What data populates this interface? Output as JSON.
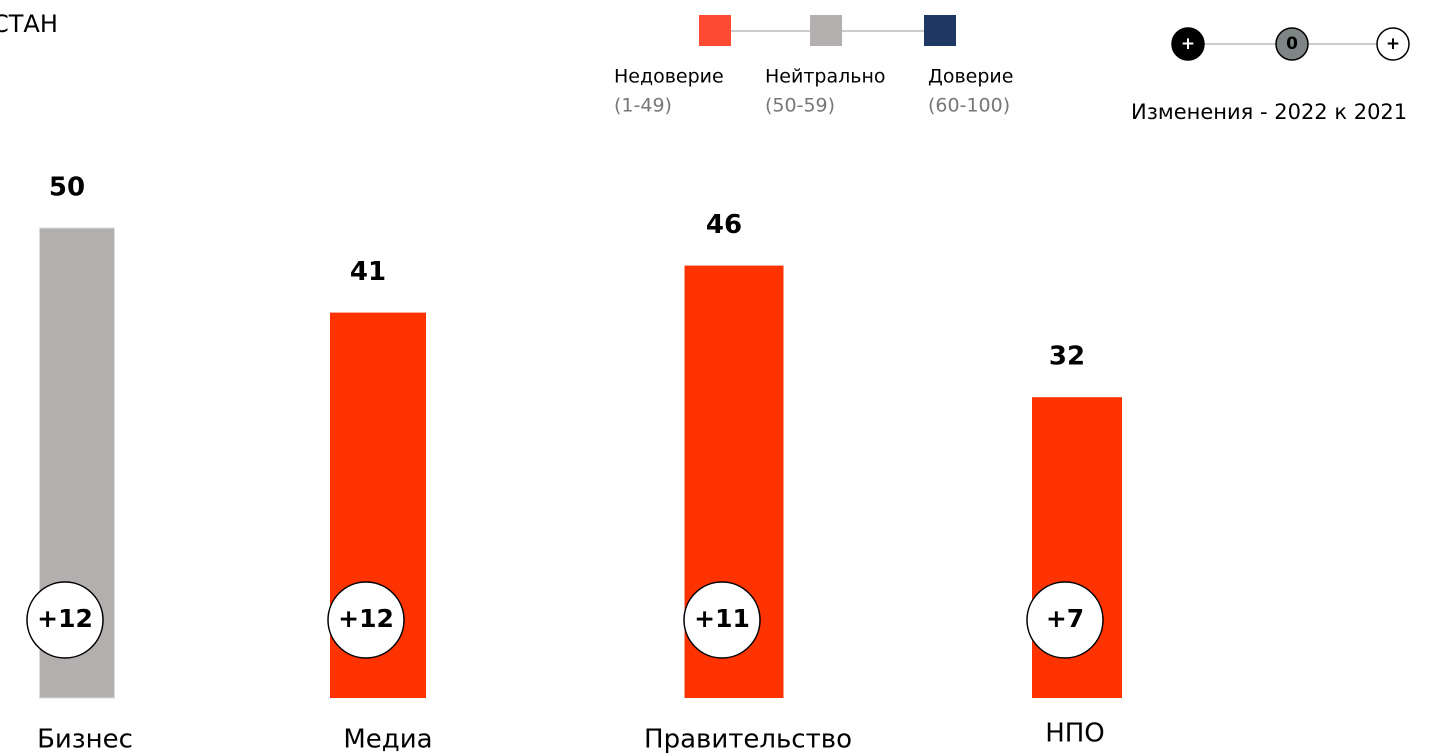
{
  "chart_data": {
    "type": "bar",
    "title": "СТАН",
    "legend": [
      {
        "name": "Недоверие",
        "range": "(1-49)",
        "color": "#fc4a33"
      },
      {
        "name": "Нейтрально",
        "range": "(50-59)",
        "color": "#b2afae"
      },
      {
        "name": "Доверие",
        "range": "(60-100)",
        "color": "#1f3864"
      }
    ],
    "change_legend": {
      "symbols": [
        "+",
        "0",
        "+"
      ],
      "label": "Изменения - 2022 к 2021"
    },
    "categories": [
      "Бизнес",
      "Медиа",
      "Правительство",
      "НПО"
    ],
    "values": [
      50,
      41,
      46,
      32
    ],
    "colors": [
      "#b2afae",
      "#ff3300",
      "#ff3300",
      "#ff3300"
    ],
    "changes": [
      12,
      12,
      11,
      7
    ],
    "change_labels": [
      "+12",
      "+12",
      "+11",
      "+7"
    ]
  }
}
